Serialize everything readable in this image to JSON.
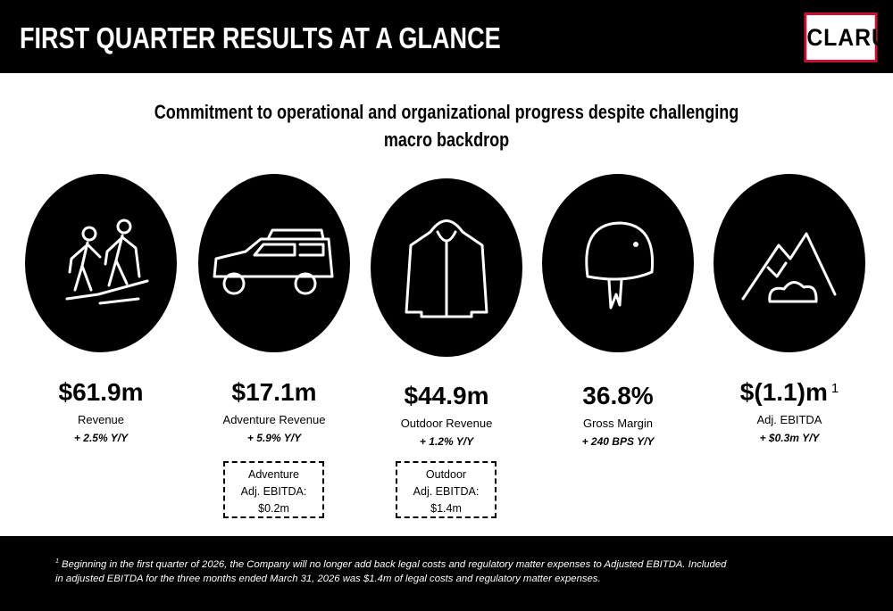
{
  "header": {
    "title": "FIRST QUARTER RESULTS AT A GLANCE",
    "logo": "CLARUS"
  },
  "subtitle": "Commitment to operational and organizational progress despite challenging macro backdrop",
  "metrics": [
    {
      "value": "$61.9m",
      "label": "Revenue",
      "change": "+ 2.5% Y/Y"
    },
    {
      "value": "$17.1m",
      "label": "Adventure Revenue",
      "change": "+ 5.9% Y/Y",
      "box": [
        "Adventure",
        "Adj. EBITDA:",
        "$0.2m"
      ]
    },
    {
      "value": "$44.9m",
      "label": "Outdoor Revenue",
      "change": "+ 1.2% Y/Y",
      "box": [
        "Outdoor",
        "Adj. EBITDA:",
        "$1.4m"
      ]
    },
    {
      "value": "36.8%",
      "label": "Gross Margin",
      "change": "+ 240 BPS Y/Y"
    },
    {
      "value": "$(1.1)m",
      "footnote_ref": "1",
      "label": "Adj. EBITDA",
      "change": "+ $0.3m Y/Y"
    }
  ],
  "footnote": {
    "marker": "1",
    "text": "Beginning in the first quarter of 2026, the Company will no longer add back legal costs and regulatory matter expenses to Adjusted EBITDA. Included in adjusted EBITDA for the three months ended March 31, 2026 was $1.4m of legal costs and regulatory matter expenses."
  }
}
